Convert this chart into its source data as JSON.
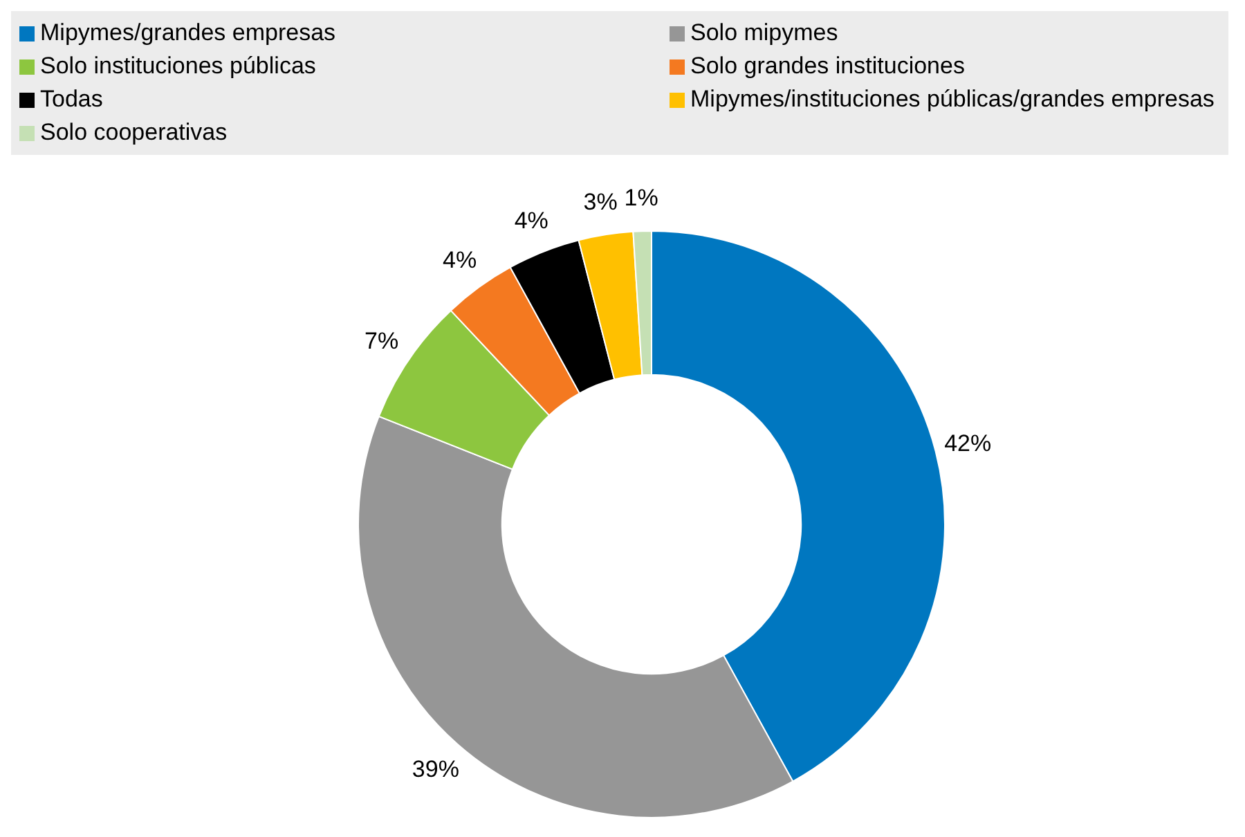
{
  "chart_data": {
    "type": "donut",
    "categories": [
      "Mipymes/grandes empresas",
      "Solo mipymes",
      "Solo instituciones públicas",
      "Solo grandes instituciones",
      "Todas",
      "Mipymes/instituciones públicas/grandes empresas",
      "Solo cooperativas"
    ],
    "values": [
      42,
      39,
      7,
      4,
      4,
      3,
      1
    ],
    "colors": [
      "#0077c0",
      "#969696",
      "#8dc63f",
      "#f47920",
      "#000000",
      "#ffc000",
      "#c5e0b4"
    ],
    "value_labels": [
      "42%",
      "39%",
      "7%",
      "4%",
      "4%",
      "3%",
      "1%"
    ],
    "legend": "top"
  }
}
